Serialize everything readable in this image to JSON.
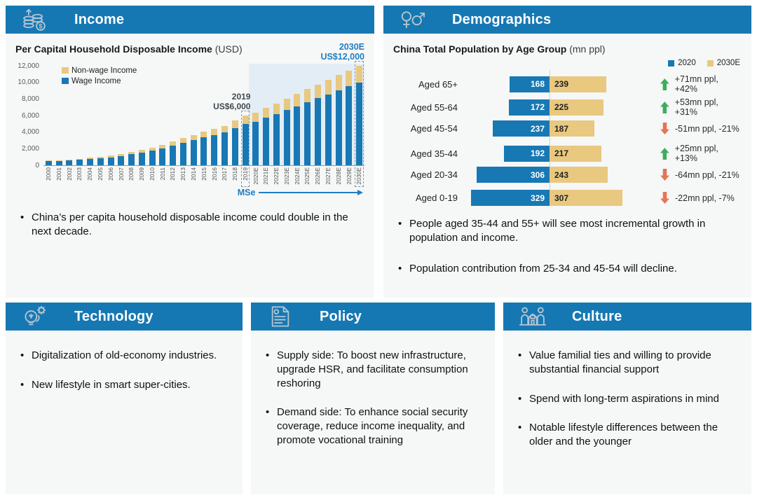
{
  "colors": {
    "header_blue": "#1678b3",
    "bar_blue": "#1878b4",
    "bar_tan": "#e9c87f",
    "forecast_shade": "#e3edf5",
    "accent_blue_text": "#1f7ec2",
    "up_green": "#3bae5c",
    "down_red": "#e57355"
  },
  "panels": {
    "income": {
      "title": "Income",
      "bullets": [
        "China’s per capita household disposable income could double in the next decade."
      ]
    },
    "demographics": {
      "title": "Demographics",
      "bullets": [
        "People aged 35-44 and 55+ will see most incremental growth in population and income.",
        "Population contribution from 25-34 and 45-54 will decline."
      ]
    },
    "technology": {
      "title": "Technology",
      "bullets": [
        "Digitalization of old-economy industries.",
        "New lifestyle in smart super-cities."
      ]
    },
    "policy": {
      "title": "Policy",
      "bullets": [
        "Supply side: To boost new infrastructure, upgrade HSR, and facilitate consumption reshoring",
        "Demand side: To enhance social security coverage, reduce income inequality, and promote vocational training"
      ]
    },
    "culture": {
      "title": "Culture",
      "bullets": [
        "Value familial ties and willing to provide substantial financial support",
        "Spend with long-term aspirations in mind",
        "Notable lifestyle differences between the older and the younger"
      ]
    }
  },
  "chart_data": [
    {
      "id": "income",
      "type": "bar",
      "stacked": true,
      "title": "Per Capital Household Disposable Income",
      "unit_label": "(USD)",
      "categories": [
        "2000",
        "2001",
        "2002",
        "2003",
        "2004",
        "2005",
        "2006",
        "2007",
        "2008",
        "2009",
        "2010",
        "2011",
        "2012",
        "2013",
        "2014",
        "2015",
        "2016",
        "2017",
        "2018",
        "2019",
        "2020E",
        "2021E",
        "2022E",
        "2023E",
        "2024E",
        "2025E",
        "2026E",
        "2027E",
        "2028E",
        "2029E",
        "2030E"
      ],
      "series": [
        {
          "name": "Wage Income",
          "color": "#1878b4",
          "values": [
            460,
            500,
            565,
            630,
            720,
            830,
            950,
            1120,
            1330,
            1500,
            1740,
            2030,
            2360,
            2700,
            3030,
            3320,
            3610,
            3940,
            4440,
            4980,
            5230,
            5700,
            6180,
            6650,
            7120,
            7590,
            8070,
            8540,
            9010,
            9490,
            9960
          ]
        },
        {
          "name": "Non-wage Income",
          "color": "#e9c87f",
          "values": [
            90,
            100,
            115,
            130,
            150,
            170,
            200,
            230,
            270,
            300,
            360,
            420,
            490,
            550,
            620,
            680,
            740,
            810,
            910,
            1020,
            1070,
            1170,
            1260,
            1360,
            1460,
            1560,
            1650,
            1750,
            1850,
            1940,
            2040
          ]
        }
      ],
      "ylim": [
        0,
        12000
      ],
      "yticks": [
        {
          "v": 0,
          "label": "0"
        },
        {
          "v": 2000,
          "label": "2,000"
        },
        {
          "v": 4000,
          "label": "4,000"
        },
        {
          "v": 6000,
          "label": "6,000"
        },
        {
          "v": 8000,
          "label": "8,000"
        },
        {
          "v": 10000,
          "label": "10,000"
        },
        {
          "v": 12000,
          "label": "12,000"
        }
      ],
      "forecast_start": "2020E",
      "highlighted_categories": [
        "2019",
        "2030E"
      ],
      "annotations": {
        "mid": {
          "target": "2019",
          "line1": "2019",
          "line2": "US$6,000"
        },
        "end": {
          "target": "2030E",
          "line1": "2030E",
          "line2": "US$12,000"
        }
      },
      "axis_arrow_label": "MSe",
      "legend_position": "top-left-inside",
      "grid": false
    },
    {
      "id": "demographics",
      "type": "bar",
      "orientation": "horizontal-paired",
      "title": "China Total Population by Age Group",
      "unit_label": "(mn ppl)",
      "categories": [
        "Aged 65+",
        "Aged 55-64",
        "Aged 45-54",
        "Aged 35-44",
        "Aged 20-34",
        "Aged 0-19"
      ],
      "series": [
        {
          "name": "2020",
          "color": "#1878b4",
          "values": [
            168,
            172,
            237,
            192,
            306,
            329
          ]
        },
        {
          "name": "2030E",
          "color": "#e9c87f",
          "values": [
            239,
            225,
            187,
            217,
            243,
            307
          ]
        }
      ],
      "changes": [
        {
          "direction": "up",
          "text": "+71mn ppl, +42%"
        },
        {
          "direction": "up",
          "text": "+53mn ppl, +31%"
        },
        {
          "direction": "down",
          "text": "-51mn ppl, -21%"
        },
        {
          "direction": "up",
          "text": "+25mn ppl, +13%"
        },
        {
          "direction": "down",
          "text": "-64mn ppl, -21%"
        },
        {
          "direction": "down",
          "text": "-22mn ppl, -7%"
        }
      ],
      "legend_position": "top-right",
      "grid": false
    }
  ]
}
